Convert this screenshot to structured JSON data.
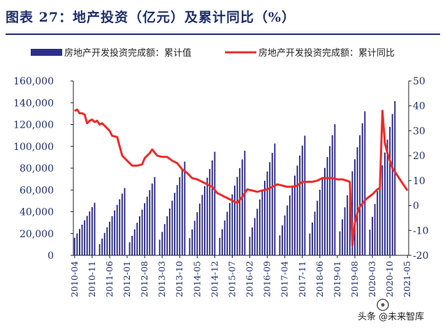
{
  "title": "图表 27：地产投资（亿元）及累计同比（%）",
  "watermark": "头条 @未来智库",
  "chart_data": {
    "type": "bar+line",
    "series": [
      {
        "name": "房地产开发投资完成额：累计值",
        "type": "bar",
        "axis": "left",
        "color": "#2e2e8a"
      },
      {
        "name": "房地产开发投资完成额：累计同比",
        "type": "line",
        "axis": "right",
        "color": "#ee2a2a"
      }
    ],
    "y_left": {
      "min": 0,
      "max": 160000,
      "ticks": [
        "0",
        "20,000",
        "40,000",
        "60,000",
        "80,000",
        "100,000",
        "120,000",
        "140,000",
        "160,000"
      ]
    },
    "y_right": {
      "min": -20,
      "max": 50,
      "ticks": [
        "-20",
        "-10",
        "0",
        "10",
        "20",
        "30",
        "40",
        "50"
      ]
    },
    "x_ticks": [
      "2010-04",
      "2010-11",
      "2011-06",
      "2012-01",
      "2012-08",
      "2013-03",
      "2013-10",
      "2014-05",
      "2014-12",
      "2015-07",
      "2016-02",
      "2016-09",
      "2017-04",
      "2017-11",
      "2018-06",
      "2019-01",
      "2019-08",
      "2020-03",
      "2020-10",
      "2021-05"
    ],
    "annual_december_totals": [
      48259,
      61740,
      71804,
      86013,
      95036,
      95979,
      102581,
      109799,
      120264,
      132194,
      141443
    ],
    "yoy_points": [
      [
        0,
        38
      ],
      [
        1,
        38.5
      ],
      [
        2,
        37
      ],
      [
        3,
        37
      ],
      [
        4,
        36.5
      ],
      [
        5,
        33
      ],
      [
        6,
        34
      ],
      [
        7,
        34.5
      ],
      [
        8,
        33.5
      ],
      [
        9,
        34
      ],
      [
        10,
        32.5
      ],
      [
        11,
        33
      ],
      [
        12,
        32
      ],
      [
        14,
        30
      ],
      [
        15,
        28
      ],
      [
        17,
        27.5
      ],
      [
        19,
        20
      ],
      [
        21,
        18
      ],
      [
        23,
        16
      ],
      [
        25,
        16
      ],
      [
        27,
        16.5
      ],
      [
        28,
        19
      ],
      [
        29,
        20
      ],
      [
        30,
        21
      ],
      [
        31,
        22.5
      ],
      [
        33,
        20
      ],
      [
        35,
        19.5
      ],
      [
        37,
        19.5
      ],
      [
        39,
        18
      ],
      [
        41,
        17
      ],
      [
        43,
        14.5
      ],
      [
        45,
        13
      ],
      [
        47,
        11
      ],
      [
        49,
        10.5
      ],
      [
        52,
        9
      ],
      [
        55,
        7.5
      ],
      [
        57,
        5
      ],
      [
        59,
        4
      ],
      [
        61,
        3
      ],
      [
        63,
        2
      ],
      [
        65,
        1
      ],
      [
        67,
        3.5
      ],
      [
        69,
        6.5
      ],
      [
        71,
        6
      ],
      [
        73,
        5.5
      ],
      [
        75,
        6
      ],
      [
        77,
        6.5
      ],
      [
        79,
        7.5
      ],
      [
        81,
        8.5
      ],
      [
        83,
        8
      ],
      [
        85,
        7.5
      ],
      [
        87,
        7.5
      ],
      [
        89,
        8
      ],
      [
        91,
        9.5
      ],
      [
        93,
        9.5
      ],
      [
        95,
        9.5
      ],
      [
        97,
        10
      ],
      [
        99,
        11
      ],
      [
        101,
        11
      ],
      [
        103,
        11
      ],
      [
        105,
        10.5
      ],
      [
        107,
        10.5
      ],
      [
        109,
        9.9
      ],
      [
        110,
        9.5
      ],
      [
        111,
        -16
      ],
      [
        112,
        -7
      ],
      [
        113,
        -3
      ],
      [
        114,
        -0.5
      ],
      [
        116,
        2
      ],
      [
        117,
        3
      ],
      [
        119,
        4.5
      ],
      [
        121,
        6.5
      ],
      [
        122,
        7
      ],
      [
        123,
        38
      ],
      [
        124,
        25
      ],
      [
        125,
        21
      ],
      [
        127,
        15
      ],
      [
        129,
        12
      ],
      [
        131,
        9
      ],
      [
        133,
        6
      ]
    ]
  }
}
